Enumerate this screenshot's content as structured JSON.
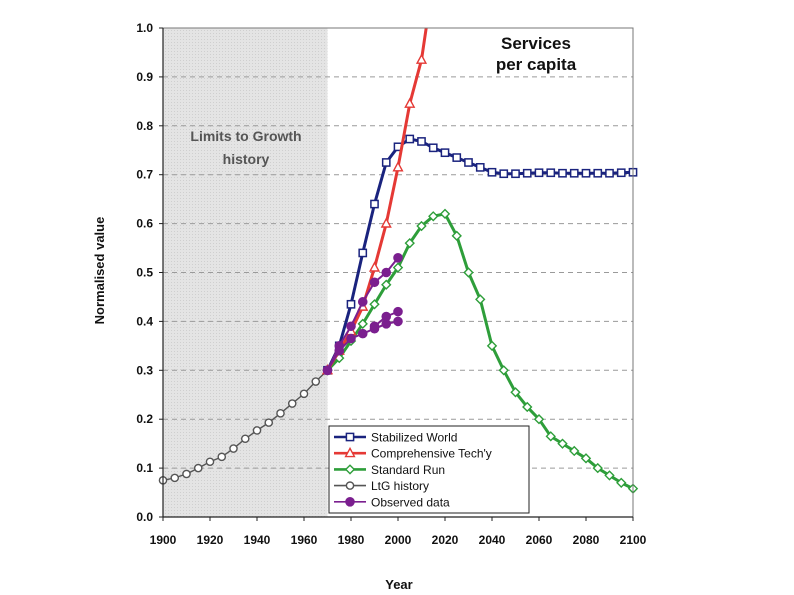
{
  "chart_data": {
    "type": "line",
    "title": "Services\nper capita",
    "xlabel": "Year",
    "ylabel": "Normalised value",
    "xlim": [
      1900,
      2100
    ],
    "ylim": [
      0,
      1.0
    ],
    "xticks": [
      "1900",
      "1920",
      "1940",
      "1960",
      "1980",
      "2000",
      "2020",
      "2040",
      "2060",
      "2080",
      "2100"
    ],
    "yticks": [
      "0.0",
      "0.1",
      "0.2",
      "0.3",
      "0.4",
      "0.5",
      "0.6",
      "0.7",
      "0.8",
      "0.9",
      "1.0"
    ],
    "shaded_region": {
      "x_range": [
        1900,
        1970
      ],
      "label_line1": "Limits to Growth",
      "label_line2": "history"
    },
    "legend": {
      "position": "bottom-right",
      "entries": [
        "Stabilized World",
        "Comprehensive Tech'y",
        "Standard Run",
        "LtG history",
        "Observed data"
      ]
    },
    "colors": {
      "stabilized": "#1a237e",
      "comprehensive": "#e53935",
      "standard": "#2e9e3a",
      "history": "#555555",
      "observed": "#7b1f8f",
      "shade": "#e4e4e4",
      "grid": "#9a9a9a"
    },
    "series": [
      {
        "name": "LtG history",
        "key": "history",
        "marker": "circle",
        "x": [
          1900,
          1905,
          1910,
          1915,
          1920,
          1925,
          1930,
          1935,
          1940,
          1945,
          1950,
          1955,
          1960,
          1965,
          1970
        ],
        "y": [
          0.075,
          0.08,
          0.088,
          0.1,
          0.113,
          0.123,
          0.14,
          0.16,
          0.177,
          0.193,
          0.212,
          0.232,
          0.252,
          0.277,
          0.3
        ]
      },
      {
        "name": "Stabilized World",
        "key": "stabilized",
        "marker": "square",
        "x": [
          1970,
          1975,
          1980,
          1985,
          1990,
          1995,
          2000,
          2005,
          2010,
          2015,
          2020,
          2025,
          2030,
          2035,
          2040,
          2045,
          2050,
          2055,
          2060,
          2065,
          2070,
          2075,
          2080,
          2085,
          2090,
          2095,
          2100
        ],
        "y": [
          0.3,
          0.35,
          0.435,
          0.54,
          0.64,
          0.725,
          0.757,
          0.773,
          0.768,
          0.755,
          0.745,
          0.735,
          0.725,
          0.715,
          0.705,
          0.702,
          0.702,
          0.703,
          0.704,
          0.704,
          0.703,
          0.703,
          0.703,
          0.703,
          0.703,
          0.704,
          0.705
        ]
      },
      {
        "name": "Comprehensive Tech'y",
        "key": "comprehensive",
        "marker": "triangle",
        "x": [
          1970,
          1975,
          1980,
          1985,
          1990,
          1995,
          2000,
          2005,
          2010,
          2012
        ],
        "y": [
          0.3,
          0.34,
          0.38,
          0.43,
          0.51,
          0.6,
          0.715,
          0.845,
          0.935,
          1.0
        ]
      },
      {
        "name": "Standard Run",
        "key": "standard",
        "marker": "diamond",
        "x": [
          1970,
          1975,
          1980,
          1985,
          1990,
          1995,
          2000,
          2005,
          2010,
          2015,
          2020,
          2025,
          2030,
          2035,
          2040,
          2045,
          2050,
          2055,
          2060,
          2065,
          2070,
          2075,
          2080,
          2085,
          2090,
          2095,
          2100
        ],
        "y": [
          0.3,
          0.325,
          0.36,
          0.395,
          0.435,
          0.475,
          0.51,
          0.56,
          0.595,
          0.615,
          0.62,
          0.575,
          0.5,
          0.445,
          0.35,
          0.3,
          0.255,
          0.225,
          0.2,
          0.165,
          0.15,
          0.135,
          0.12,
          0.1,
          0.085,
          0.07,
          0.058
        ]
      },
      {
        "name": "Observed data",
        "key": "observed",
        "marker": "filled-circle",
        "lines": [
          {
            "x": [
              1970,
              1975,
              1980,
              1985,
              1990,
              1995,
              2000
            ],
            "y": [
              0.3,
              0.35,
              0.39,
              0.44,
              0.48,
              0.5,
              0.53
            ]
          },
          {
            "x": [
              1970,
              1975,
              1980,
              1985,
              1990,
              1995,
              2000
            ],
            "y": [
              0.3,
              0.34,
              0.365,
              0.375,
              0.385,
              0.395,
              0.4
            ]
          },
          {
            "x": [
              1990,
              1995,
              2000
            ],
            "y": [
              0.39,
              0.41,
              0.42
            ]
          }
        ]
      }
    ]
  }
}
